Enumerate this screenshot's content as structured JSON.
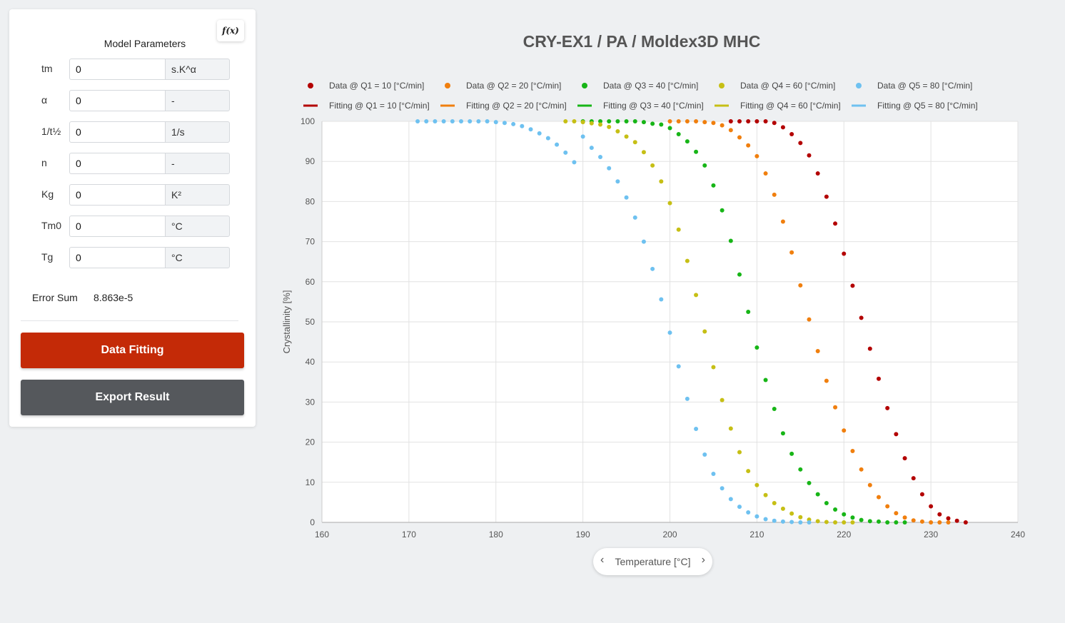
{
  "panel": {
    "title": "Model Parameters",
    "fx_label": "f(x)",
    "params": [
      {
        "label": "tm",
        "value": "0",
        "unit": "s.K^α"
      },
      {
        "label": "α",
        "value": "0",
        "unit": "-"
      },
      {
        "label": "1/t½",
        "value": "0",
        "unit": "1/s"
      },
      {
        "label": "n",
        "value": "0",
        "unit": "-"
      },
      {
        "label": "Kg",
        "value": "0",
        "unit": "K²"
      },
      {
        "label": "Tm0",
        "value": "0",
        "unit": "°C"
      },
      {
        "label": "Tg",
        "value": "0",
        "unit": "°C"
      }
    ],
    "error_label": "Error Sum",
    "error_value": "8.863e-5",
    "fit_button": "Data Fitting",
    "export_button": "Export Result"
  },
  "xaxis_nav": {
    "label": "Temperature [°C]",
    "prev_icon": "chevron-left-icon",
    "next_icon": "chevron-right-icon"
  },
  "chart_data": {
    "type": "scatter",
    "title": "CRY-EX1 / PA / Moldex3D MHC",
    "xlabel": "Temperature [°C]",
    "ylabel": "Crystallinity [%]",
    "xlim": [
      160,
      240
    ],
    "ylim": [
      0,
      100
    ],
    "xticks": [
      160,
      170,
      180,
      190,
      200,
      210,
      220,
      230,
      240
    ],
    "yticks": [
      0,
      10,
      20,
      30,
      40,
      50,
      60,
      70,
      80,
      90,
      100
    ],
    "grid": true,
    "legend_position": "top",
    "series": [
      {
        "name": "Data @ Q1 = 10 [°C/min]",
        "fit_name": "Fitting @ Q1 = 10 [°C/min]",
        "color": "#b30000",
        "x": [
          207,
          208,
          209,
          210,
          211,
          212,
          213,
          214,
          215,
          216,
          217,
          218,
          219,
          220,
          221,
          222,
          223,
          224,
          225,
          226,
          227,
          228,
          229,
          230,
          231,
          232,
          233,
          234
        ],
        "y": [
          100,
          100,
          100,
          100,
          100,
          99.6,
          98.5,
          96.8,
          94.6,
          91.5,
          87,
          81.2,
          74.5,
          67,
          59,
          51,
          43.3,
          35.8,
          28.5,
          22,
          16,
          11,
          7,
          4,
          2,
          1,
          0.4,
          0
        ]
      },
      {
        "name": "Data @ Q2 = 20 [°C/min]",
        "fit_name": "Fitting @ Q2 = 20 [°C/min]",
        "color": "#f07f0e",
        "x": [
          200,
          201,
          202,
          203,
          204,
          205,
          206,
          207,
          208,
          209,
          210,
          211,
          212,
          213,
          214,
          215,
          216,
          217,
          218,
          219,
          220,
          221,
          222,
          223,
          224,
          225,
          226,
          227,
          228,
          229,
          230,
          231,
          232
        ],
        "y": [
          100,
          100,
          100,
          100,
          99.8,
          99.6,
          99,
          97.8,
          96,
          94,
          91.3,
          87,
          81.7,
          75,
          67.3,
          59.1,
          50.6,
          42.7,
          35.3,
          28.7,
          22.9,
          17.8,
          13.2,
          9.3,
          6.3,
          4,
          2.3,
          1.2,
          0.5,
          0.2,
          0,
          0,
          0
        ]
      },
      {
        "name": "Data @ Q3 = 40 [°C/min]",
        "fit_name": "Fitting @ Q3 = 40 [°C/min]",
        "color": "#17b517",
        "x": [
          190,
          191,
          192,
          193,
          194,
          195,
          196,
          197,
          198,
          199,
          200,
          201,
          202,
          203,
          204,
          205,
          206,
          207,
          208,
          209,
          210,
          211,
          212,
          213,
          214,
          215,
          216,
          217,
          218,
          219,
          220,
          221,
          222,
          223,
          224,
          225,
          226,
          227
        ],
        "y": [
          100,
          100,
          100,
          100,
          100,
          100,
          100,
          99.8,
          99.4,
          99.2,
          98.3,
          96.8,
          95,
          92.4,
          89,
          84,
          77.8,
          70.2,
          61.8,
          52.5,
          43.6,
          35.5,
          28.3,
          22.2,
          17.1,
          13.2,
          9.8,
          7,
          4.8,
          3.2,
          2,
          1.2,
          0.6,
          0.3,
          0.2,
          0,
          0,
          0
        ]
      },
      {
        "name": "Data @ Q4 = 60 [°C/min]",
        "fit_name": "Fitting @ Q4 = 60 [°C/min]",
        "color": "#c6bf15",
        "x": [
          188,
          189,
          190,
          191,
          192,
          193,
          194,
          195,
          196,
          197,
          198,
          199,
          200,
          201,
          202,
          203,
          204,
          205,
          206,
          207,
          208,
          209,
          210,
          211,
          212,
          213,
          214,
          215,
          216,
          217,
          218,
          219,
          220,
          221
        ],
        "y": [
          100,
          100,
          99.8,
          99.5,
          99.2,
          98.6,
          97.5,
          96.2,
          94.8,
          92.3,
          89,
          85,
          79.6,
          73,
          65.2,
          56.7,
          47.6,
          38.7,
          30.5,
          23.4,
          17.5,
          12.8,
          9.3,
          6.8,
          4.8,
          3.4,
          2.2,
          1.3,
          0.7,
          0.3,
          0.1,
          0,
          0,
          0
        ]
      },
      {
        "name": "Data @ Q5 = 80 [°C/min]",
        "fit_name": "Fitting @ Q5 = 80 [°C/min]",
        "color": "#6ec1f0",
        "x": [
          171,
          172,
          173,
          174,
          175,
          176,
          177,
          178,
          179,
          180,
          181,
          182,
          183,
          184,
          185,
          186,
          187,
          188,
          189,
          190,
          191,
          192,
          193,
          194,
          195,
          196,
          197,
          198,
          199,
          200,
          201,
          202,
          203,
          204,
          205,
          206,
          207,
          208,
          209,
          210,
          211,
          212,
          213,
          214,
          215,
          216
        ],
        "y": [
          100,
          100,
          100,
          100,
          100,
          100,
          100,
          100,
          100,
          99.8,
          99.6,
          99.3,
          98.8,
          98,
          97,
          95.8,
          94.2,
          92.2,
          89.8,
          96.2,
          93.4,
          91.1,
          88.3,
          85,
          81,
          76,
          70,
          63.2,
          55.6,
          47.3,
          38.9,
          30.8,
          23.3,
          16.9,
          12.1,
          8.5,
          5.8,
          3.9,
          2.5,
          1.5,
          0.8,
          0.4,
          0.2,
          0.1,
          0,
          0
        ]
      }
    ]
  }
}
